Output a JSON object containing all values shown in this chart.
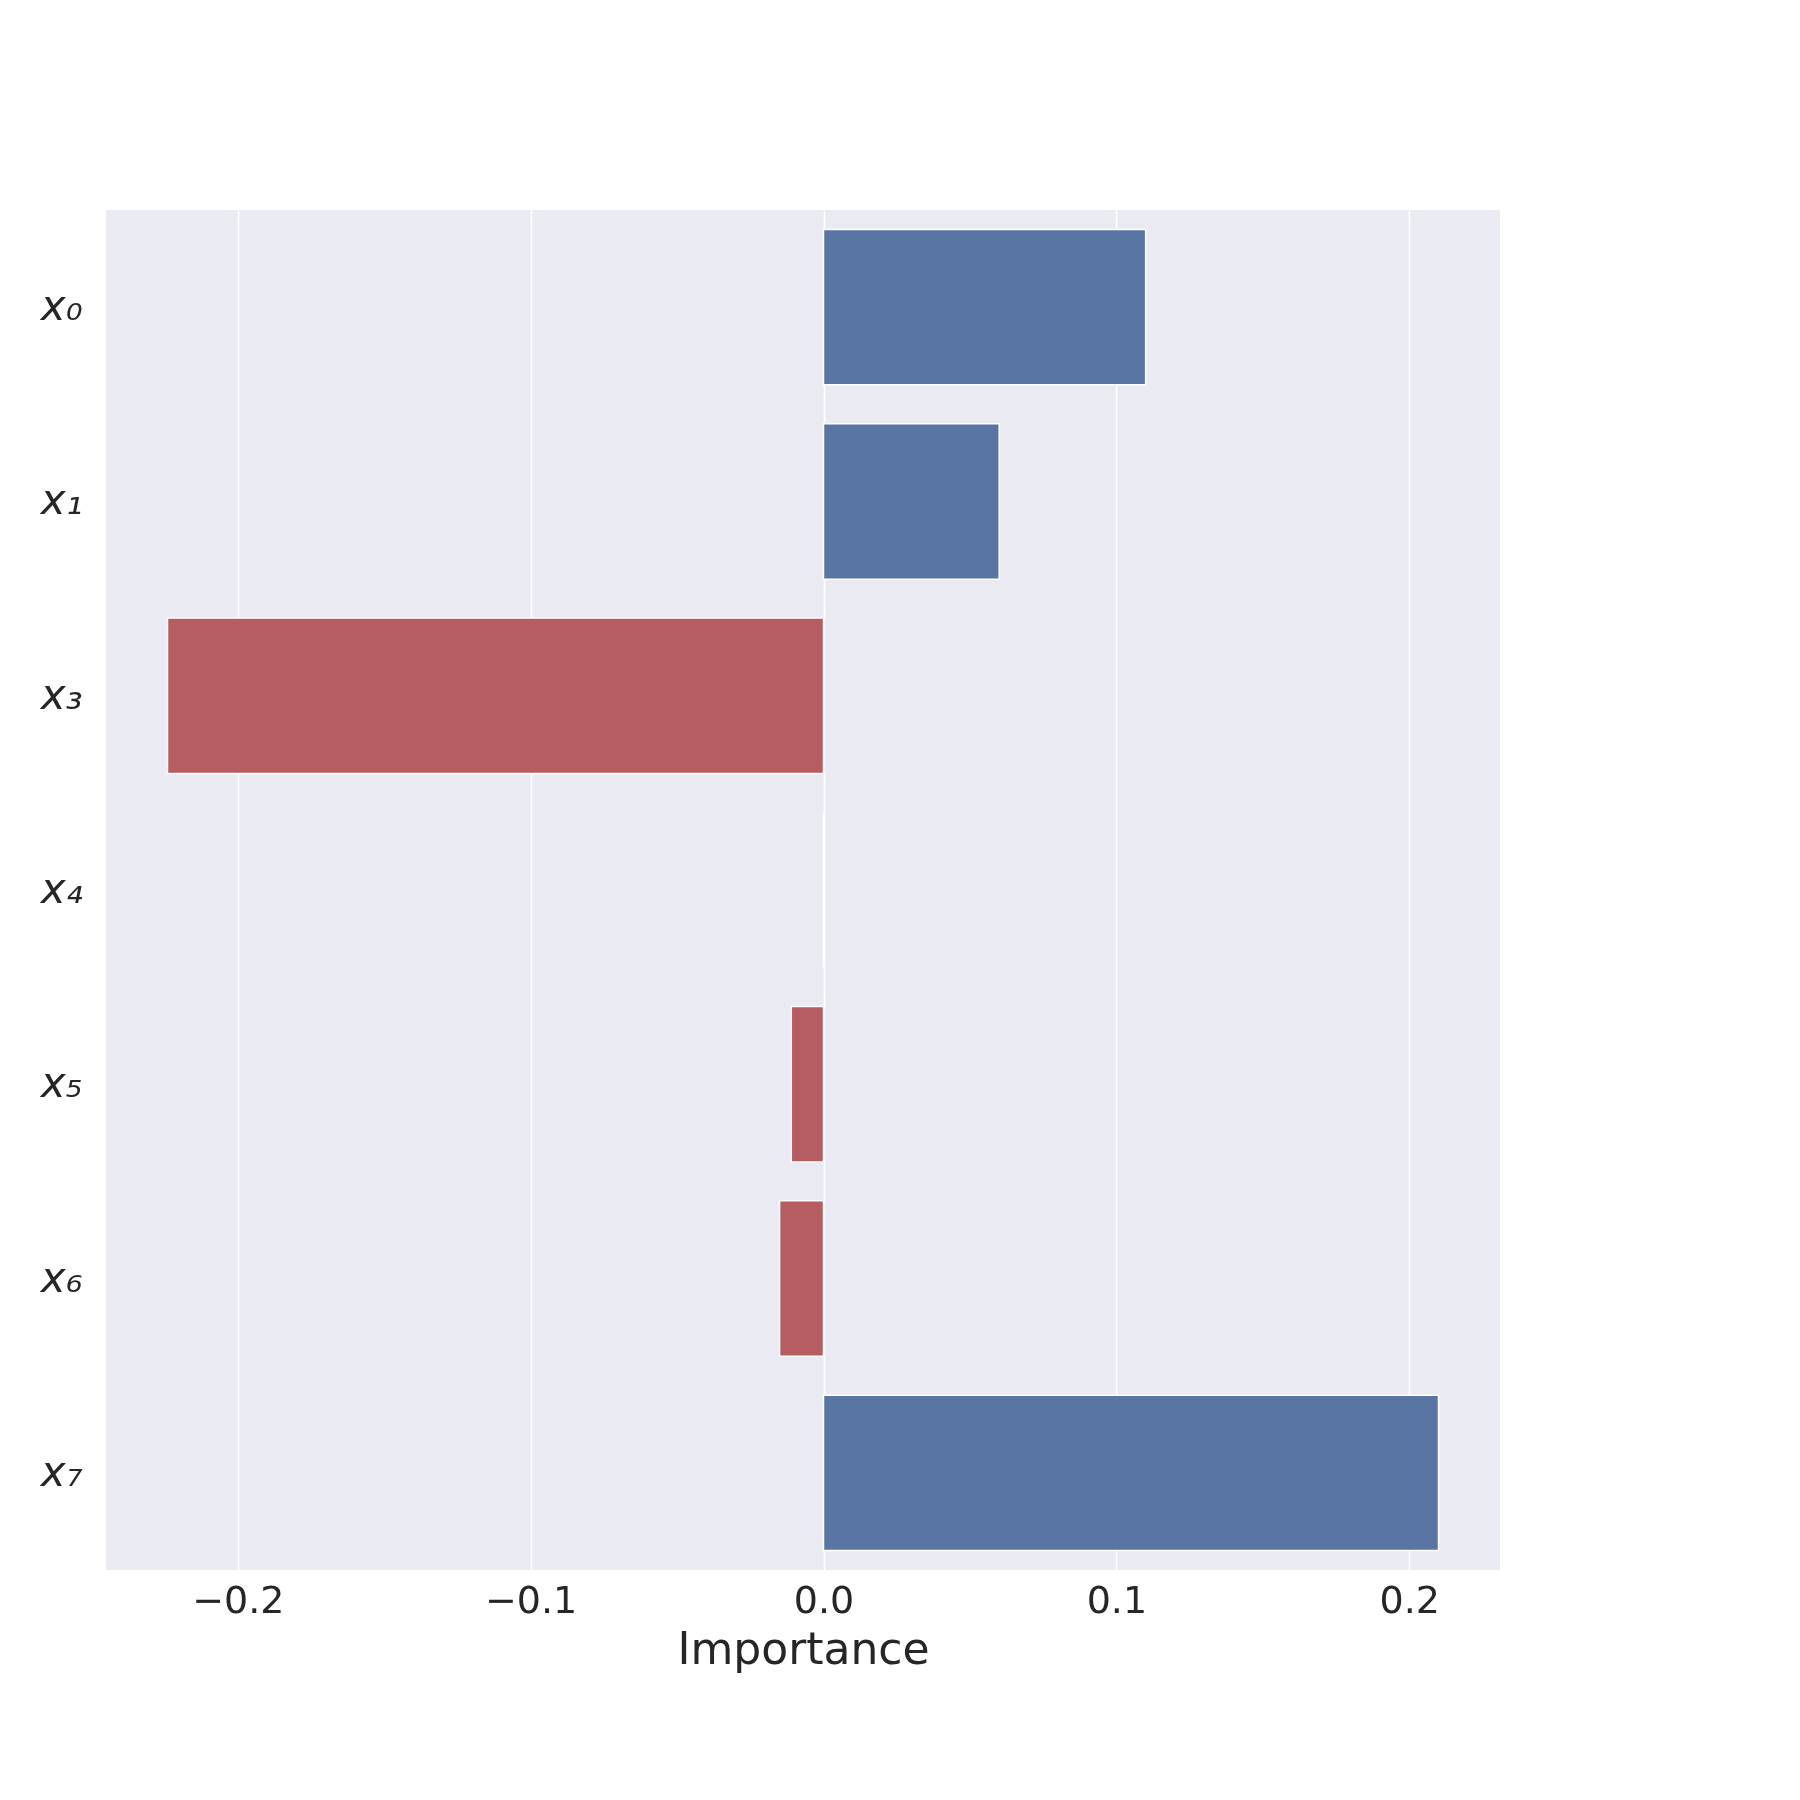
{
  "chart_data": {
    "type": "bar",
    "orientation": "horizontal",
    "xlabel": "Importance",
    "categories": [
      "x₀",
      "x₁",
      "x₃",
      "x₄",
      "x₅",
      "x₆",
      "x₇"
    ],
    "values": [
      0.11,
      0.06,
      -0.224,
      0,
      -0.011,
      -0.015,
      0.21
    ],
    "colors": [
      "#5975a4",
      "#5975a4",
      "#b55d60",
      "#5975a4",
      "#b55d60",
      "#b55d60",
      "#5975a4"
    ],
    "xlim": [
      -0.245,
      0.231
    ],
    "xticks": [
      {
        "value": -0.2,
        "label": "−0.2"
      },
      {
        "value": -0.1,
        "label": "−0.1"
      },
      {
        "value": 0,
        "label": "0.0"
      },
      0.1,
      0.2
    ],
    "grid": "x"
  }
}
